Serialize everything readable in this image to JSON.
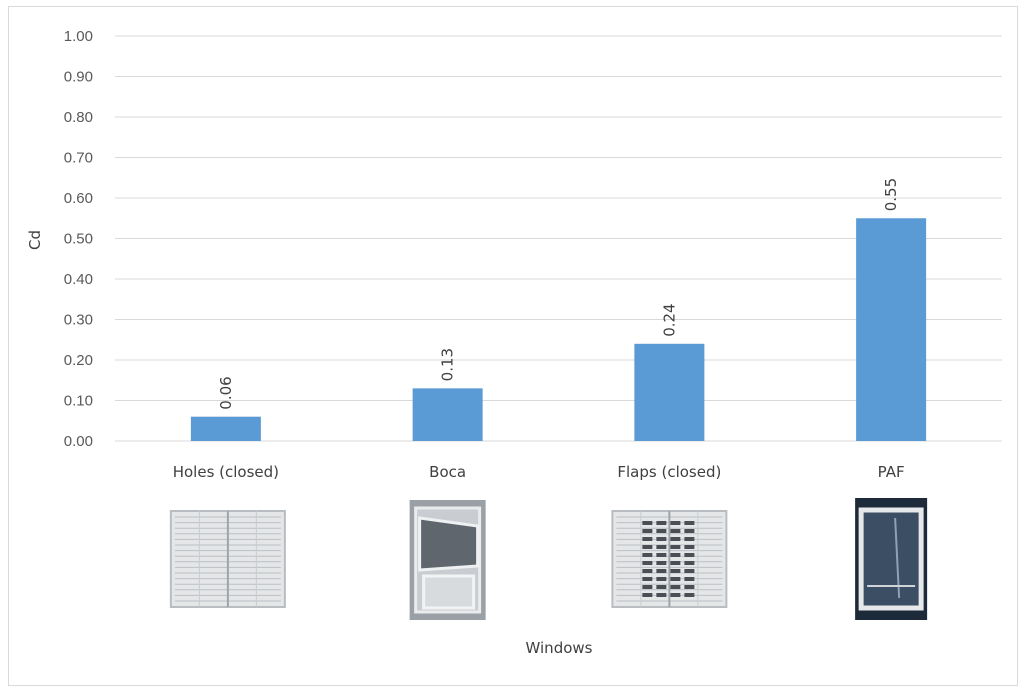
{
  "chart_data": {
    "type": "bar",
    "title": "",
    "xlabel": "Windows",
    "ylabel": "Cd",
    "ylim": [
      0,
      1.0
    ],
    "yticks": [
      "0.00",
      "0.10",
      "0.20",
      "0.30",
      "0.40",
      "0.50",
      "0.60",
      "0.70",
      "0.80",
      "0.90",
      "1.00"
    ],
    "categories": [
      "Holes (closed)",
      "Boca",
      "Flaps (closed)",
      "PAF"
    ],
    "values": [
      0.06,
      0.13,
      0.24,
      0.55
    ],
    "data_labels": [
      "0.06",
      "0.13",
      "0.24",
      "0.55"
    ],
    "grid": true,
    "legend": "none",
    "bar_color": "#5B9BD5",
    "window_images": [
      "louvered-shutter-window",
      "sliding-tilt-window",
      "slotted-flap-shutter-window",
      "framed-glass-window"
    ]
  }
}
